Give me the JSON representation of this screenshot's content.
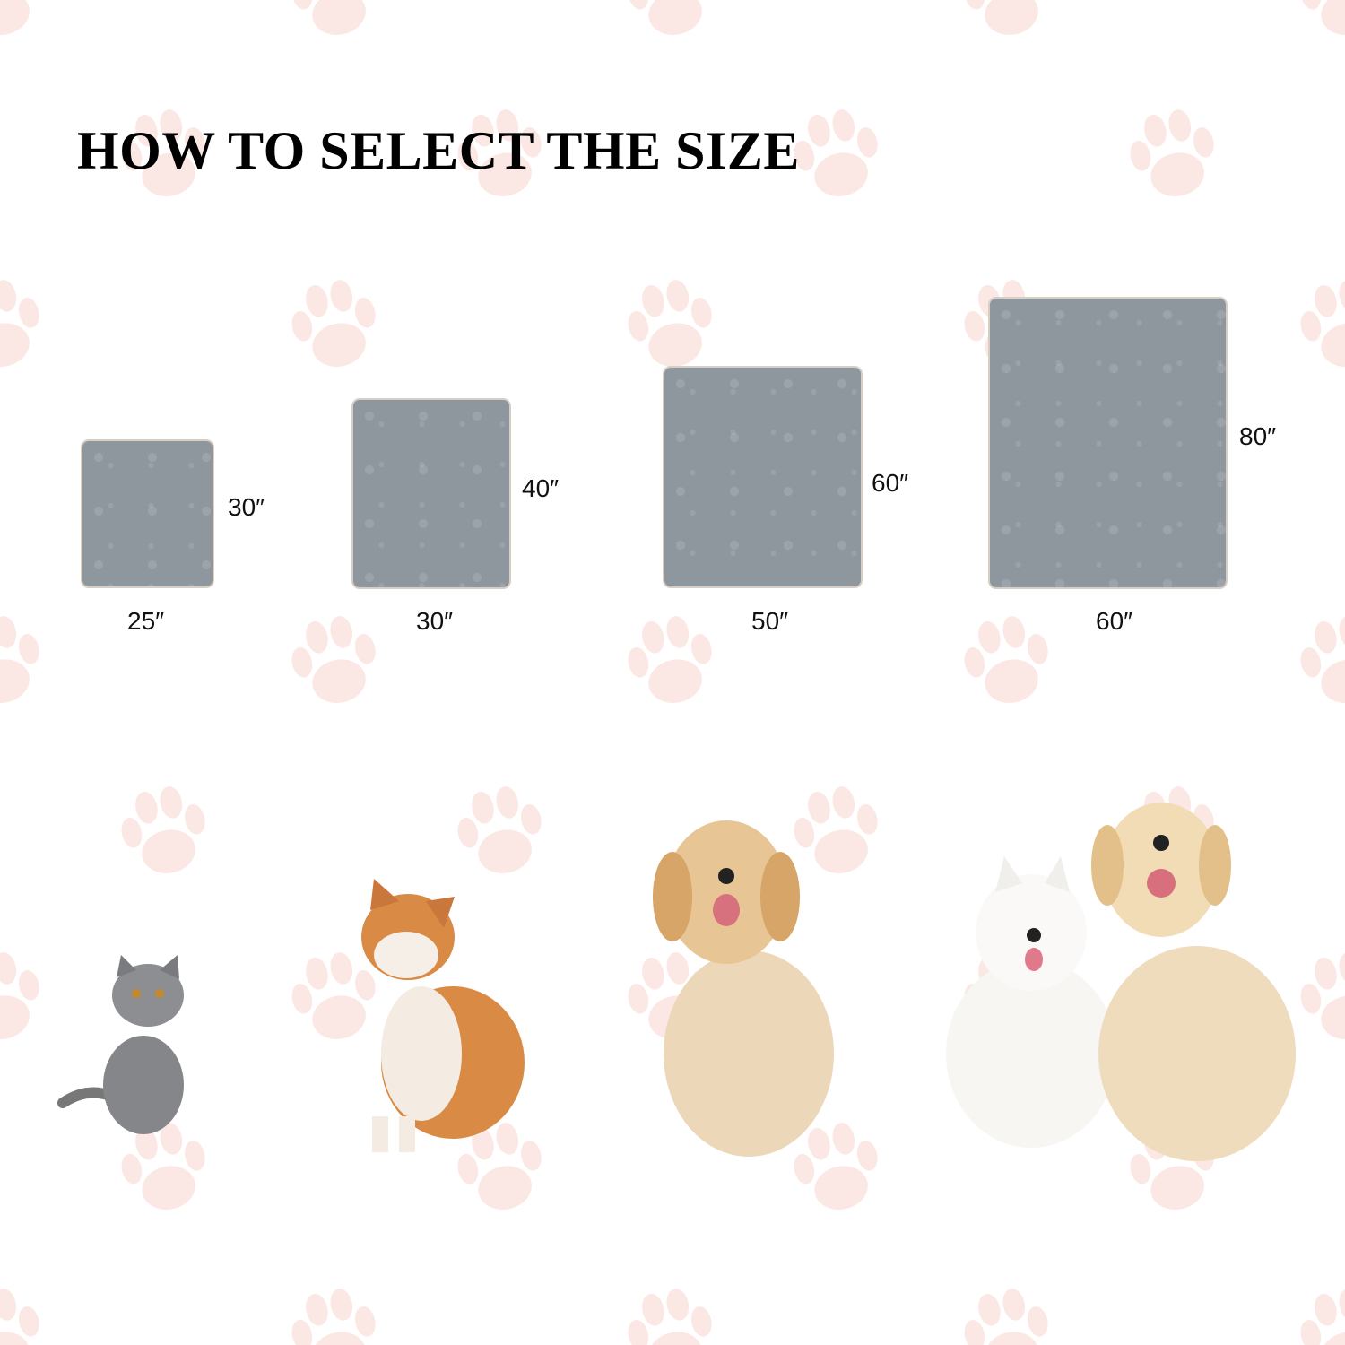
{
  "title": "HOW TO SELECT THE SIZE",
  "colors": {
    "paw": "#fbe8e4",
    "blanket": "#8e969e",
    "text": "#000000"
  },
  "sizes": [
    {
      "width": "25″",
      "height": "30″",
      "pet": "gray cat"
    },
    {
      "width": "30″",
      "height": "40″",
      "pet": "shiba inu"
    },
    {
      "width": "50″",
      "height": "60″",
      "pet": "golden retriever"
    },
    {
      "width": "60″",
      "height": "80″",
      "pet": "samoyed and golden retriever"
    }
  ]
}
